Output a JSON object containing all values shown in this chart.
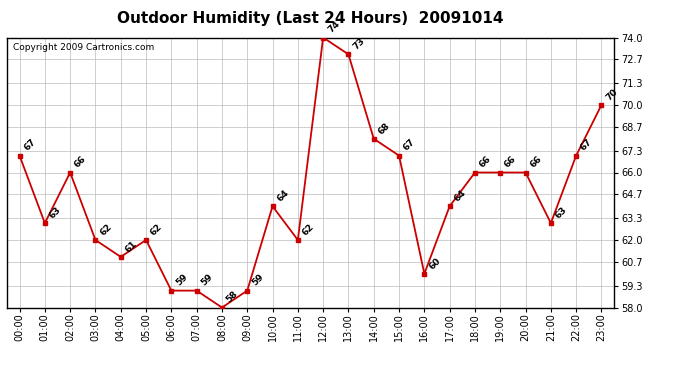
{
  "title": "Outdoor Humidity (Last 24 Hours)  20091014",
  "copyright": "Copyright 2009 Cartronics.com",
  "hours": [
    "00:00",
    "01:00",
    "02:00",
    "03:00",
    "04:00",
    "05:00",
    "06:00",
    "07:00",
    "08:00",
    "09:00",
    "10:00",
    "11:00",
    "12:00",
    "13:00",
    "14:00",
    "15:00",
    "16:00",
    "17:00",
    "18:00",
    "19:00",
    "20:00",
    "21:00",
    "22:00",
    "23:00"
  ],
  "values": [
    67,
    63,
    66,
    62,
    61,
    62,
    59,
    59,
    58,
    59,
    64,
    62,
    74,
    73,
    68,
    67,
    60,
    64,
    66,
    66,
    66,
    63,
    67,
    70
  ],
  "ylim_min": 58.0,
  "ylim_max": 74.0,
  "yticks": [
    58.0,
    59.3,
    60.7,
    62.0,
    63.3,
    64.7,
    66.0,
    67.3,
    68.7,
    70.0,
    71.3,
    72.7,
    74.0
  ],
  "line_color": "#cc0000",
  "marker_color": "#cc0000",
  "bg_color": "#ffffff",
  "plot_bg_color": "#ffffff",
  "grid_color": "#bbbbbb",
  "title_fontsize": 11,
  "copyright_fontsize": 6.5,
  "label_fontsize": 6.5,
  "tick_fontsize": 7
}
